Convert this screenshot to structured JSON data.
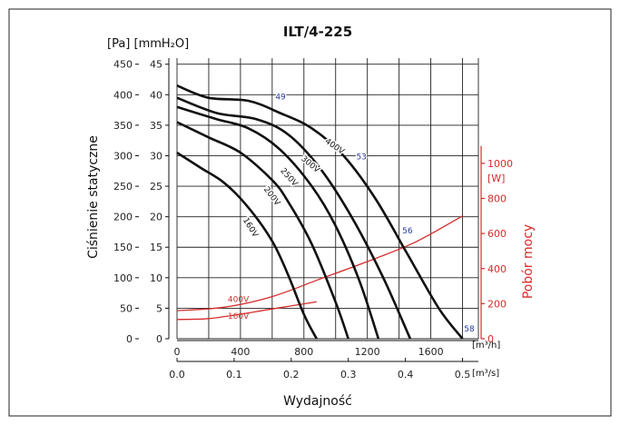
{
  "chart_data": {
    "type": "line",
    "title": "ILT/4-225",
    "ylabel": "Ciśnienie statyczne",
    "ylabel_units": "[Pa] [mmH₂O]",
    "y2label": "Pobór mocy",
    "y2label_units": "[W]",
    "xlabel": "Wydajność",
    "x_units_m3h": "[m³/h]",
    "x_units_m3s": "[m³/s]",
    "xlim_m3h": [
      0,
      1900
    ],
    "ylim_mmH2O": [
      0,
      46
    ],
    "ylim_W": [
      0,
      1600
    ],
    "x_ticks_m3h": [
      "0",
      "400",
      "800",
      "1200",
      "1600"
    ],
    "x_ticks_m3s": [
      "0.0",
      "0.1",
      "0.2",
      "0.3",
      "0.4",
      "0.5"
    ],
    "y_ticks_pa": [
      "0",
      "50",
      "100",
      "150",
      "200",
      "250",
      "300",
      "350",
      "400",
      "450"
    ],
    "y_ticks_mmh2o": [
      "0",
      "5",
      "10",
      "15",
      "20",
      "25",
      "30",
      "35",
      "40",
      "45"
    ],
    "y2_ticks_w": [
      "0",
      "200",
      "400",
      "600",
      "800",
      "1000"
    ],
    "grid": true,
    "pressure_series": [
      {
        "name": "160V",
        "x": [
          0,
          150,
          300,
          450,
          600,
          700,
          800,
          880
        ],
        "y": [
          30.5,
          28,
          25.5,
          21.5,
          16,
          10.5,
          4,
          0
        ]
      },
      {
        "name": "200V",
        "x": [
          0,
          200,
          400,
          600,
          700,
          850,
          1000,
          1080
        ],
        "y": [
          35.5,
          33,
          30.5,
          26,
          22.5,
          15.5,
          6,
          0
        ]
      },
      {
        "name": "250V",
        "x": [
          0,
          250,
          450,
          650,
          850,
          1000,
          1150,
          1270
        ],
        "y": [
          38,
          36,
          34.5,
          31,
          25,
          18.5,
          9.5,
          0
        ]
      },
      {
        "name": "300V",
        "x": [
          0,
          250,
          500,
          700,
          900,
          1100,
          1300,
          1470
        ],
        "y": [
          39.5,
          37,
          36,
          33.5,
          28,
          20,
          10,
          0
        ]
      },
      {
        "name": "400V",
        "x": [
          0,
          200,
          450,
          650,
          850,
          1050,
          1250,
          1450,
          1650,
          1800
        ],
        "y": [
          41.5,
          39.5,
          39,
          37,
          34.5,
          30,
          23,
          14,
          5,
          0
        ]
      }
    ],
    "power_series": [
      {
        "name": "400V",
        "x": [
          0,
          300,
          600,
          900,
          1200,
          1500,
          1800
        ],
        "y_W": [
          160,
          180,
          240,
          340,
          440,
          550,
          700
        ]
      },
      {
        "name": "160V",
        "x": [
          0,
          200,
          400,
          600,
          880
        ],
        "y_W": [
          110,
          115,
          140,
          170,
          210
        ]
      }
    ],
    "efficiency_labels": [
      {
        "text": "49",
        "x": 620,
        "y": 39.2
      },
      {
        "text": "53",
        "x": 1130,
        "y": 29.4
      },
      {
        "text": "56",
        "x": 1420,
        "y": 17.3
      },
      {
        "text": "58",
        "x": 1810,
        "y": 1.2
      }
    ]
  },
  "colors": {
    "power": "#d62b2b",
    "efficiency": "#2a3a9a",
    "curve": "#111111",
    "grid": "#222222"
  }
}
